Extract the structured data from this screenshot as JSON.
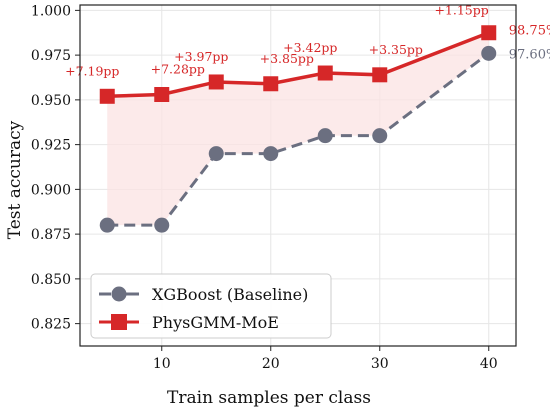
{
  "chart_data": {
    "type": "line",
    "title": "",
    "xlabel": "Train samples per class",
    "ylabel": "Test accuracy",
    "x": [
      5,
      10,
      15,
      20,
      25,
      30,
      40
    ],
    "xlim": [
      2.5,
      42.5
    ],
    "ylim": [
      0.8125,
      1.003
    ],
    "xticks": [
      10,
      20,
      30,
      40
    ],
    "xtick_labels": [
      "10",
      "20",
      "30",
      "40"
    ],
    "yticks": [
      0.825,
      0.85,
      0.875,
      0.9,
      0.925,
      0.95,
      0.975,
      1.0
    ],
    "ytick_labels": [
      "0.825",
      "0.850",
      "0.875",
      "0.900",
      "0.925",
      "0.950",
      "0.975",
      "1.000"
    ],
    "grid": true,
    "legend_position": "lower-left",
    "shaded_region": "between series",
    "series": [
      {
        "name": "XGBoost (Baseline)",
        "values": [
          0.88,
          0.88,
          0.92,
          0.92,
          0.93,
          0.93,
          0.976
        ],
        "color": "#6b6f80",
        "marker": "circle",
        "line_style": "dashed",
        "end_label": "97.60%"
      },
      {
        "name": "PhysGMM-MoE",
        "values": [
          0.952,
          0.953,
          0.96,
          0.959,
          0.965,
          0.964,
          0.9875
        ],
        "color": "#d62728",
        "marker": "square",
        "line_style": "solid",
        "end_label": "98.75%"
      }
    ],
    "annotations": [
      "+7.19pp",
      "+7.28pp",
      "+3.97pp",
      "+3.85pp",
      "+3.42pp",
      "+3.35pp",
      "+1.15pp"
    ],
    "fill_color": "#fbe3e3"
  }
}
